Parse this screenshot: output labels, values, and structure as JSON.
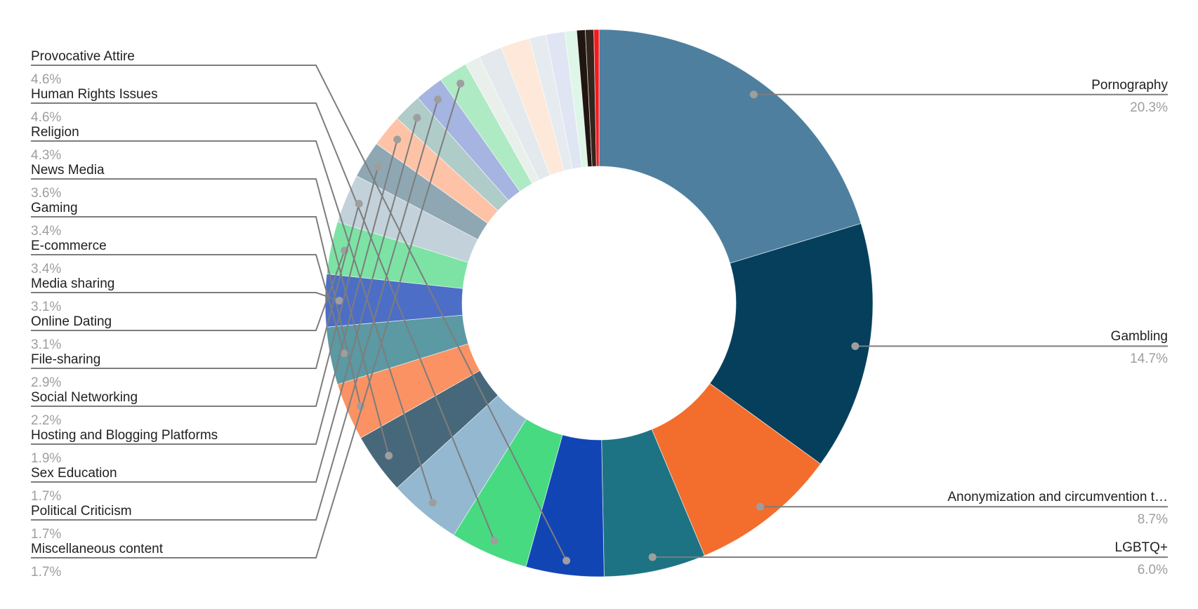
{
  "chart_data": {
    "type": "pie",
    "subtype": "donut",
    "title": "",
    "direction": "clockwise",
    "start_angle_deg": 0,
    "inner_radius_ratio": 0.5,
    "background_color": "#ffffff",
    "label_text_color": "#212121",
    "percent_text_color": "#9e9e9e",
    "leader_line_color": "#7d7d7d",
    "leader_dot_color": "#9e9e9e",
    "segments": [
      {
        "label": "Pornography",
        "value": 20.3,
        "pct_label": "20.3%",
        "color": "#4e7f9e",
        "side": "right"
      },
      {
        "label": "Gambling",
        "value": 14.7,
        "pct_label": "14.7%",
        "color": "#053f5c",
        "side": "right"
      },
      {
        "label": "Anonymization and circumvention t…",
        "value": 8.7,
        "pct_label": "8.7%",
        "color": "#f36d2d",
        "side": "right"
      },
      {
        "label": "LGBTQ+",
        "value": 6.0,
        "pct_label": "6.0%",
        "color": "#1d7383",
        "side": "right"
      },
      {
        "label": "Provocative Attire",
        "value": 4.6,
        "pct_label": "4.6%",
        "color": "#1245b4",
        "side": "left"
      },
      {
        "label": "Human Rights Issues",
        "value": 4.6,
        "pct_label": "4.6%",
        "color": "#47da81",
        "side": "left"
      },
      {
        "label": "Religion",
        "value": 4.3,
        "pct_label": "4.3%",
        "color": "#93b8d0",
        "side": "left"
      },
      {
        "label": "News Media",
        "value": 3.6,
        "pct_label": "3.6%",
        "color": "#47687a",
        "side": "left"
      },
      {
        "label": "Gaming",
        "value": 3.4,
        "pct_label": "3.4%",
        "color": "#fa9264",
        "side": "left"
      },
      {
        "label": "E-commerce",
        "value": 3.4,
        "pct_label": "3.4%",
        "color": "#5b99a3",
        "side": "left"
      },
      {
        "label": "Media sharing",
        "value": 3.1,
        "pct_label": "3.1%",
        "color": "#4c6ec6",
        "side": "left"
      },
      {
        "label": "Online Dating",
        "value": 3.1,
        "pct_label": "3.1%",
        "color": "#7de3a5",
        "side": "left"
      },
      {
        "label": "File-sharing",
        "value": 2.9,
        "pct_label": "2.9%",
        "color": "#c2d1da",
        "side": "left"
      },
      {
        "label": "Social Networking",
        "value": 2.2,
        "pct_label": "2.2%",
        "color": "#8ea7b3",
        "side": "left"
      },
      {
        "label": "Hosting and Blogging Platforms",
        "value": 1.9,
        "pct_label": "1.9%",
        "color": "#fec3a7",
        "side": "left"
      },
      {
        "label": "Sex Education",
        "value": 1.7,
        "pct_label": "1.7%",
        "color": "#afccc9",
        "side": "left"
      },
      {
        "label": "Political Criticism",
        "value": 1.7,
        "pct_label": "1.7%",
        "color": "#a5b4e0",
        "side": "left"
      },
      {
        "label": "Miscellaneous content",
        "value": 1.7,
        "pct_label": "1.7%",
        "color": "#aeeac3",
        "side": "left"
      },
      {
        "label": null,
        "value": 0.9,
        "color": "#e9efeb"
      },
      {
        "label": null,
        "value": 1.4,
        "color": "#e3e9ec"
      },
      {
        "label": null,
        "value": 1.7,
        "color": "#fde8da"
      },
      {
        "label": null,
        "value": 1.0,
        "color": "#e6ebef"
      },
      {
        "label": null,
        "value": 1.1,
        "color": "#e0e5f4"
      },
      {
        "label": null,
        "value": 0.7,
        "color": "#def6e8"
      },
      {
        "label": null,
        "value": 0.5,
        "color": "#201511"
      },
      {
        "label": null,
        "value": 0.5,
        "color": "#33251c"
      },
      {
        "label": null,
        "value": 0.3,
        "color": "#f31a1e"
      }
    ]
  }
}
